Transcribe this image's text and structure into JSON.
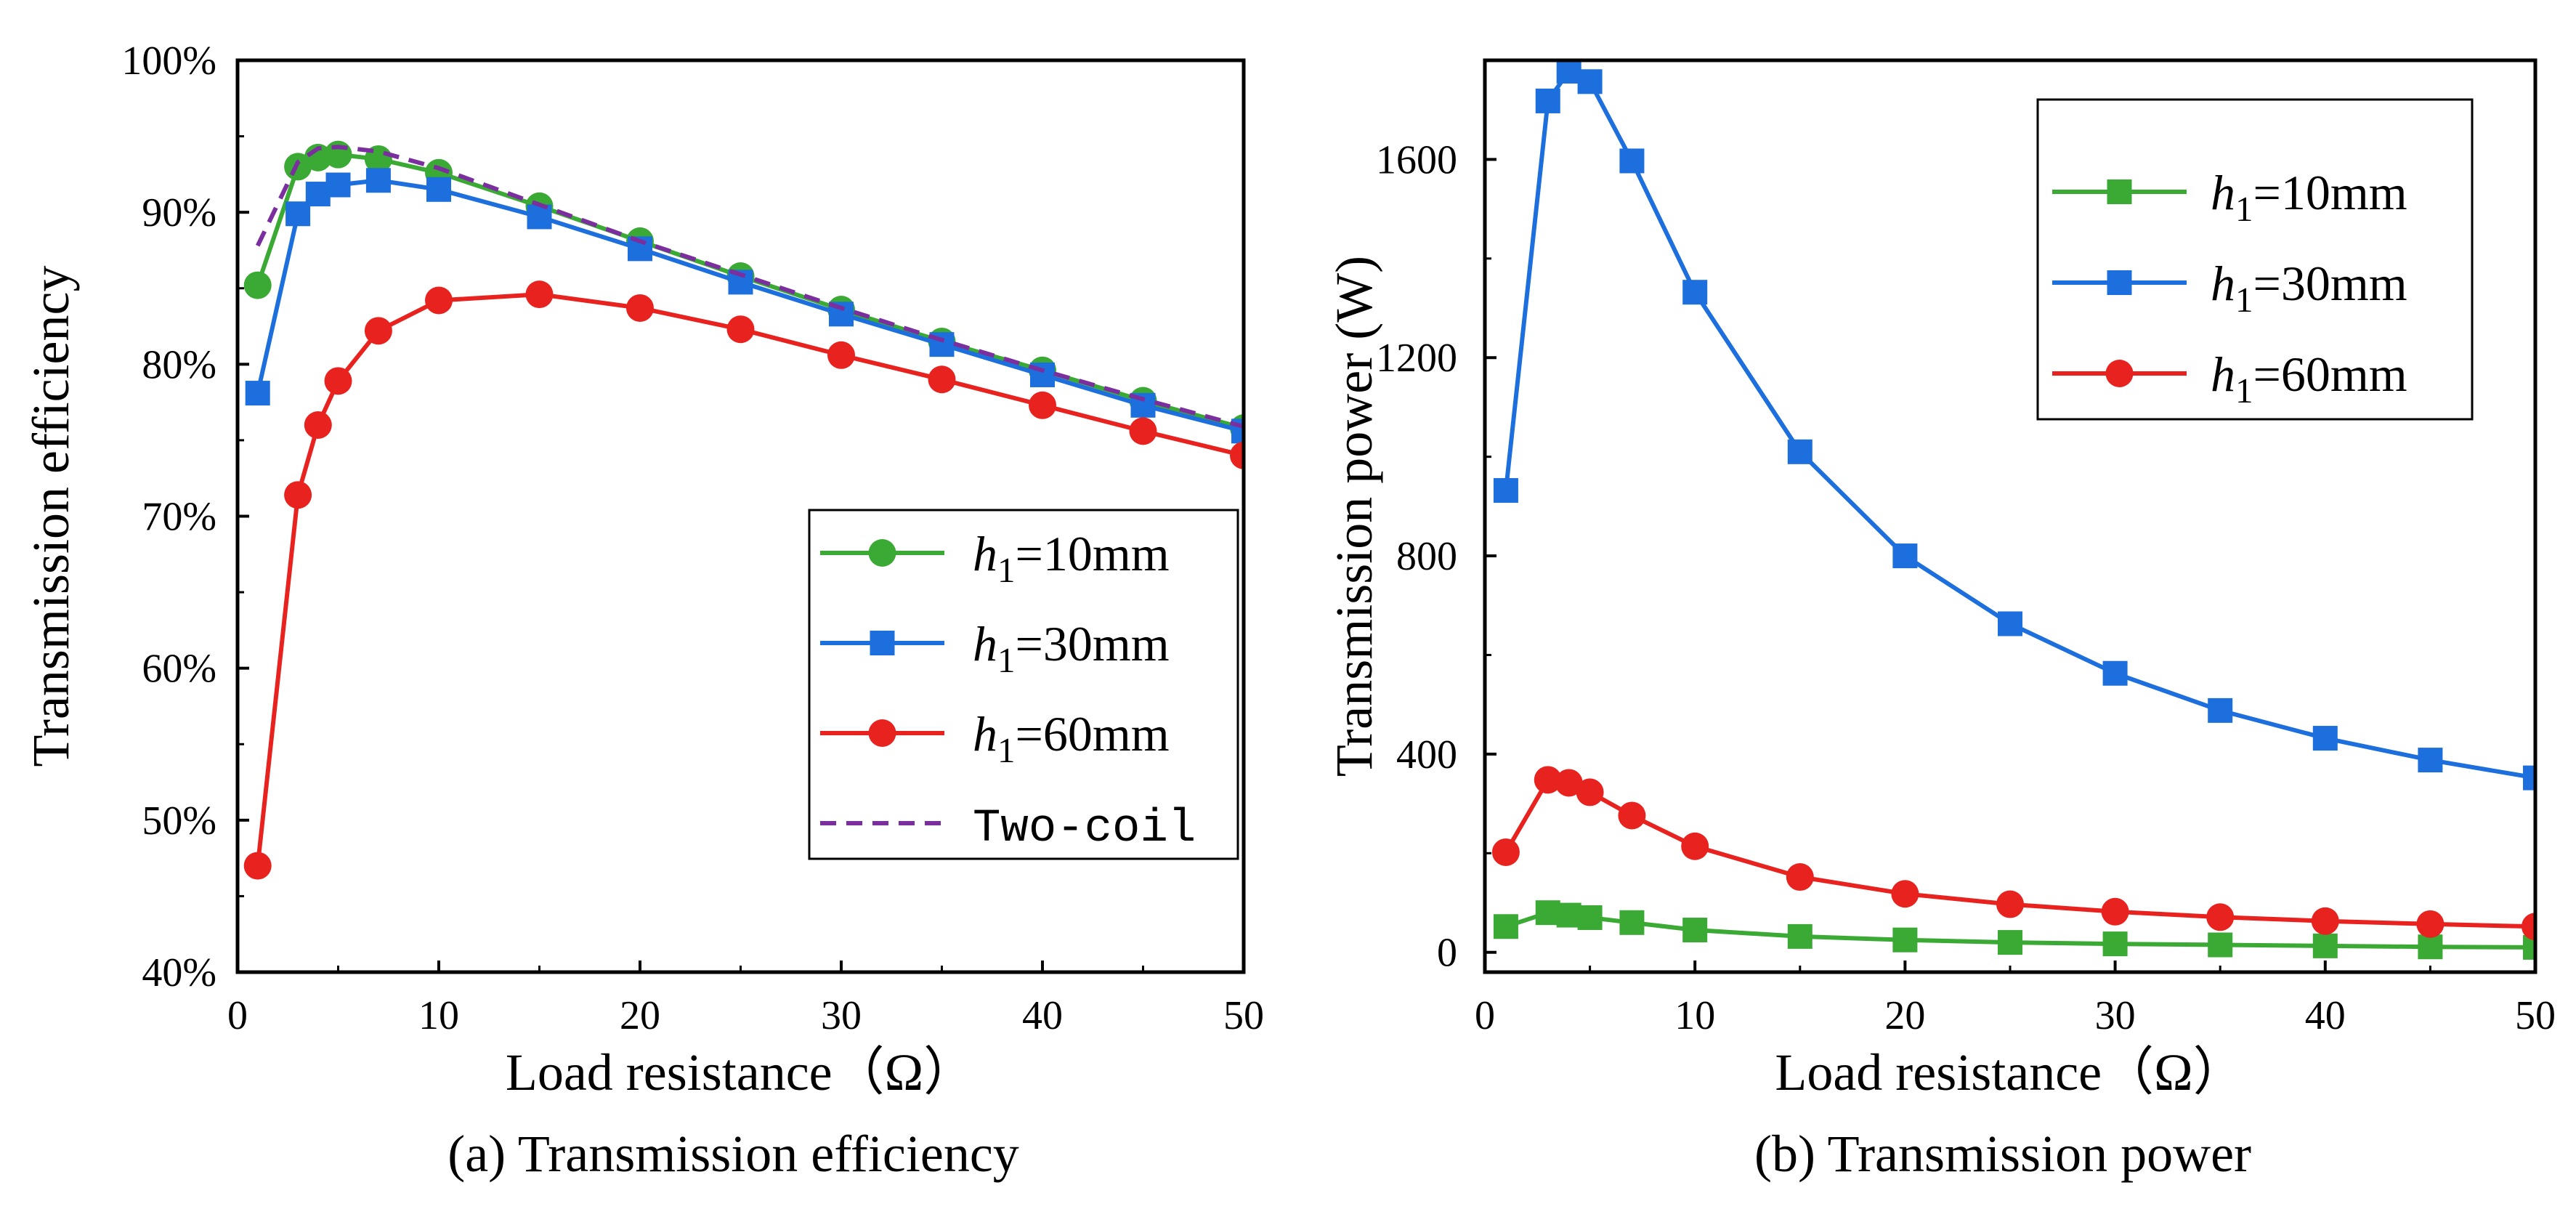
{
  "chart_data": [
    {
      "type": "line",
      "caption": "(a) Transmission efficiency",
      "xlabel": "Load resistance（Ω）",
      "ylabel": "Transmission efficiency",
      "xlim": [
        0,
        50
      ],
      "ylim": [
        40,
        100
      ],
      "xticks": [
        0,
        10,
        20,
        30,
        40,
        50
      ],
      "yticks": [
        40,
        50,
        60,
        70,
        80,
        90,
        100
      ],
      "ytick_labels": [
        "40%",
        "50%",
        "60%",
        "70%",
        "80%",
        "90%",
        "100%"
      ],
      "grid": false,
      "legend_position": "bottom-right",
      "series": [
        {
          "name": "h1=10mm",
          "label_italic": "h",
          "label_sub": "1",
          "label_rest": "=10mm",
          "color": "#3aaa35",
          "marker": "circle",
          "dash": false,
          "x": [
            1,
            3,
            4,
            5,
            7,
            10,
            15,
            20,
            25,
            30,
            35,
            40,
            45,
            50
          ],
          "y": [
            85.2,
            93.0,
            93.6,
            93.8,
            93.5,
            92.6,
            90.4,
            88.1,
            85.8,
            83.6,
            81.5,
            79.6,
            77.6,
            75.8
          ]
        },
        {
          "name": "h1=30mm",
          "label_italic": "h",
          "label_sub": "1",
          "label_rest": "=30mm",
          "color": "#1c6fdc",
          "marker": "square",
          "dash": false,
          "x": [
            1,
            3,
            4,
            5,
            7,
            10,
            15,
            20,
            25,
            30,
            35,
            40,
            45,
            50
          ],
          "y": [
            78.1,
            89.9,
            91.2,
            91.8,
            92.1,
            91.5,
            89.7,
            87.6,
            85.4,
            83.3,
            81.3,
            79.3,
            77.3,
            75.6
          ]
        },
        {
          "name": "h1=60mm",
          "label_italic": "h",
          "label_sub": "1",
          "label_rest": "=60mm",
          "color": "#e8231f",
          "marker": "circle",
          "dash": false,
          "x": [
            1,
            3,
            4,
            5,
            7,
            10,
            15,
            20,
            25,
            30,
            35,
            40,
            45,
            50
          ],
          "y": [
            47.0,
            71.4,
            76.0,
            78.9,
            82.2,
            84.2,
            84.6,
            83.7,
            82.3,
            80.6,
            79.0,
            77.3,
            75.6,
            74.0
          ]
        },
        {
          "name": "Two-coil",
          "label_italic": "",
          "label_sub": "",
          "label_rest": "Two-coil",
          "color": "#7b2e9e",
          "marker": "none",
          "dash": true,
          "x": [
            1,
            3,
            4,
            5,
            7,
            10,
            15,
            20,
            25,
            30,
            35,
            40,
            45,
            50
          ],
          "y": [
            87.8,
            93.3,
            94.2,
            94.3,
            94.0,
            92.9,
            90.5,
            88.1,
            85.9,
            83.7,
            81.6,
            79.6,
            77.7,
            75.9
          ]
        }
      ]
    },
    {
      "type": "line",
      "caption": "(b) Transmission power",
      "xlabel": "Load resistance（Ω）",
      "ylabel": "Transmission power (W)",
      "xlim": [
        0,
        50
      ],
      "ylim": [
        -40,
        1800
      ],
      "xticks": [
        0,
        10,
        20,
        30,
        40,
        50
      ],
      "yticks": [
        0,
        400,
        800,
        1200,
        1600
      ],
      "ytick_labels": [
        "0",
        "400",
        "800",
        "1200",
        "1600"
      ],
      "grid": false,
      "legend_position": "top-right",
      "series": [
        {
          "name": "h1=10mm",
          "label_italic": "h",
          "label_sub": "1",
          "label_rest": "=10mm",
          "color": "#3aaa35",
          "marker": "square",
          "dash": false,
          "x": [
            1,
            3,
            4,
            5,
            7,
            10,
            15,
            20,
            25,
            30,
            35,
            40,
            45,
            50
          ],
          "y": [
            52,
            80,
            75,
            70,
            60,
            45,
            32,
            25,
            20,
            17,
            15,
            13,
            11,
            10
          ]
        },
        {
          "name": "h1=30mm",
          "label_italic": "h",
          "label_sub": "1",
          "label_rest": "=30mm",
          "color": "#1c6fdc",
          "marker": "square",
          "dash": false,
          "x": [
            1,
            3,
            4,
            5,
            7,
            10,
            15,
            20,
            25,
            30,
            35,
            40,
            45,
            50
          ],
          "y": [
            932,
            1718,
            1778,
            1757,
            1597,
            1332,
            1010,
            800,
            663,
            563,
            488,
            432,
            388,
            352
          ]
        },
        {
          "name": "h1=60mm",
          "label_italic": "h",
          "label_sub": "1",
          "label_rest": "=60mm",
          "color": "#e8231f",
          "marker": "circle",
          "dash": false,
          "x": [
            1,
            3,
            4,
            5,
            7,
            10,
            15,
            20,
            25,
            30,
            35,
            40,
            45,
            50
          ],
          "y": [
            202,
            348,
            342,
            323,
            276,
            214,
            152,
            118,
            97,
            82,
            71,
            63,
            57,
            52
          ]
        }
      ]
    }
  ]
}
